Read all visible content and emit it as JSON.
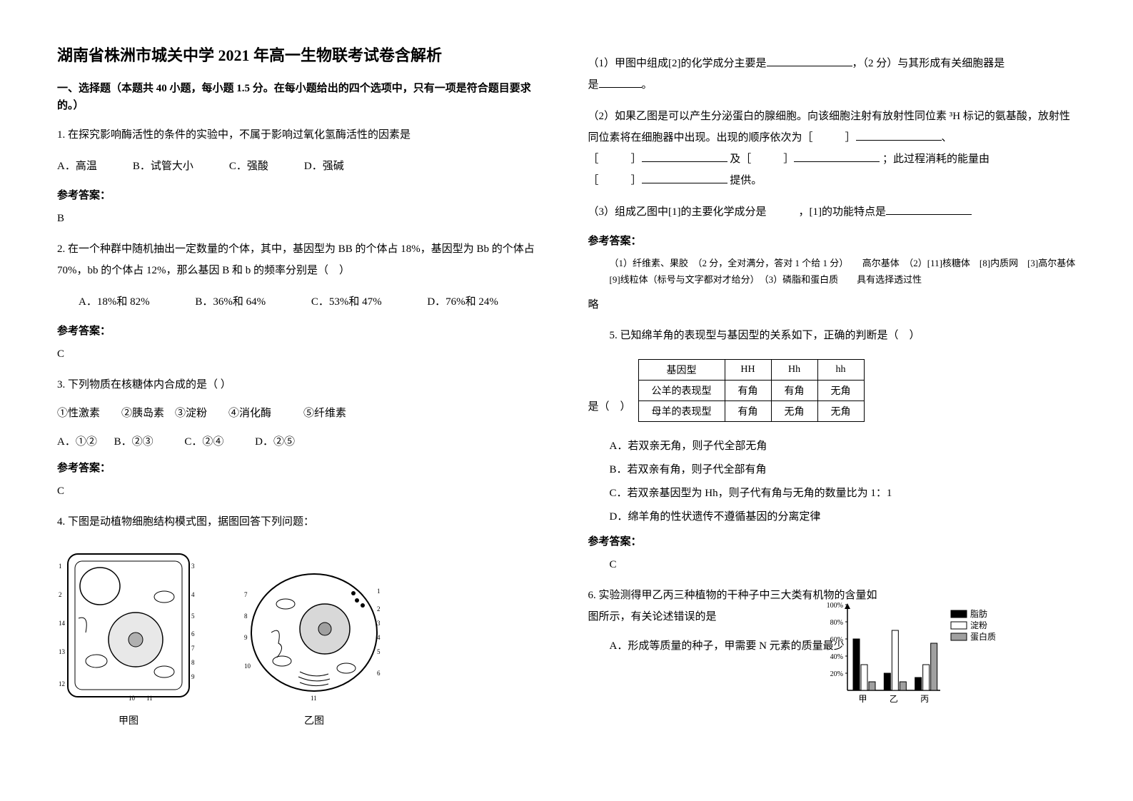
{
  "title": "湖南省株洲市城关中学 2021 年高一生物联考试卷含解析",
  "section1": "一、选择题（本题共 40 小题，每小题 1.5 分。在每小题给出的四个选项中，只有一项是符合题目要求的。）",
  "q1": {
    "stem": "1. 在探究影响酶活性的条件的实验中，不属于影响过氧化氢酶活性的因素是",
    "optA": "A．高温",
    "optB": "B．试管大小",
    "optC": "C．强酸",
    "optD": "D．强碱",
    "answer_label": "参考答案：",
    "answer": "B"
  },
  "q2": {
    "stem": "2. 在一个种群中随机抽出一定数量的个体，其中，基因型为 BB 的个体占 18%，基因型为 Bb 的个体占 70%，bb 的个体占 12%，那么基因 B 和 b 的频率分别是（　）",
    "optA": "A．18%和 82%",
    "optB": "B．36%和 64%",
    "optC": "C．53%和 47%",
    "optD": "D．76%和 24%",
    "answer_label": "参考答案：",
    "answer": "C"
  },
  "q3": {
    "stem": "3. 下列物质在核糖体内合成的是（ ）",
    "items": "①性激素　　②胰岛素　③淀粉　　④消化酶　　　⑤纤维素",
    "optA": "A．①②",
    "optB": "B．②③",
    "optC": "C．②④",
    "optD": "D．②⑤",
    "answer_label": "参考答案：",
    "answer": "C"
  },
  "q4": {
    "stem": "4. 下图是动植物细胞结构模式图，据图回答下列问题：",
    "label_a": "甲图",
    "label_b": "乙图",
    "sub1_a": "（1）甲图中组成[2]的化学成分主要是",
    "sub1_b": "，（2 分）与其形成有关细胞器是",
    "sub1_c": "。",
    "sub2_a": "（2）如果乙图是可以产生分泌蛋白的腺细胞。向该细胞注射有放射性同位素 ³H 标记的氨基酸，放射性同位素将在细胞器中出现。出现的顺序依次为［　　　］",
    "sub2_b": "、",
    "sub2_c": "［　　　］",
    "sub2_d": "及［　　　］",
    "sub2_e": "；此过程消耗的能量由",
    "sub2_f": "［　　　］",
    "sub2_g": "提供。",
    "sub3_a": "（3）组成乙图中[1]的主要化学成分是　　　，[1]的功能特点是",
    "answer_label": "参考答案：",
    "answer": "（1）纤维素、果胶　（2 分，全对满分，答对 1 个给 1 分）　　高尔基体　（2）[11]核糖体　[8]内质网　[3]高尔基体　[9]线粒体（标号与文字都对才给分）　（3）磷脂和蛋白质　　具有选择透过性",
    "answer_omit": "略"
  },
  "q5": {
    "stem": "5. 已知绵羊角的表现型与基因型的关系如下，正确的判断是（　）",
    "table": {
      "headers": [
        "基因型",
        "HH",
        "Hh",
        "hh"
      ],
      "rows": [
        [
          "公羊的表现型",
          "有角",
          "有角",
          "无角"
        ],
        [
          "母羊的表现型",
          "有角",
          "无角",
          "无角"
        ]
      ]
    },
    "optA": "A．若双亲无角，则子代全部无角",
    "optB": "B．若双亲有角，则子代全部有角",
    "optC": "C．若双亲基因型为 Hh，则子代有角与无角的数量比为 1：1",
    "optD": "D．绵羊角的性状遗传不遵循基因的分离定律",
    "answer_label": "参考答案：",
    "answer": "C"
  },
  "q6": {
    "stem": "6. 实验测得甲乙丙三种植物的干种子中三大类有机物的含量如图所示，有关论述错误的是",
    "optA": "A．形成等质量的种子，甲需要 N 元素的质量最少",
    "chart": {
      "type": "bar",
      "categories": [
        "甲",
        "乙",
        "丙"
      ],
      "series": [
        {
          "name": "脂肪",
          "color": "#000000",
          "values": [
            60,
            20,
            15
          ]
        },
        {
          "name": "淀粉",
          "color": "#ffffff",
          "values": [
            30,
            70,
            30
          ]
        },
        {
          "name": "蛋白质",
          "color": "#a0a0a0",
          "values": [
            10,
            10,
            55
          ]
        }
      ],
      "ylabels": [
        "20%",
        "40%",
        "60%",
        "80%",
        "100%"
      ],
      "ylim": [
        0,
        100
      ],
      "label_fontsize": 12
    }
  }
}
